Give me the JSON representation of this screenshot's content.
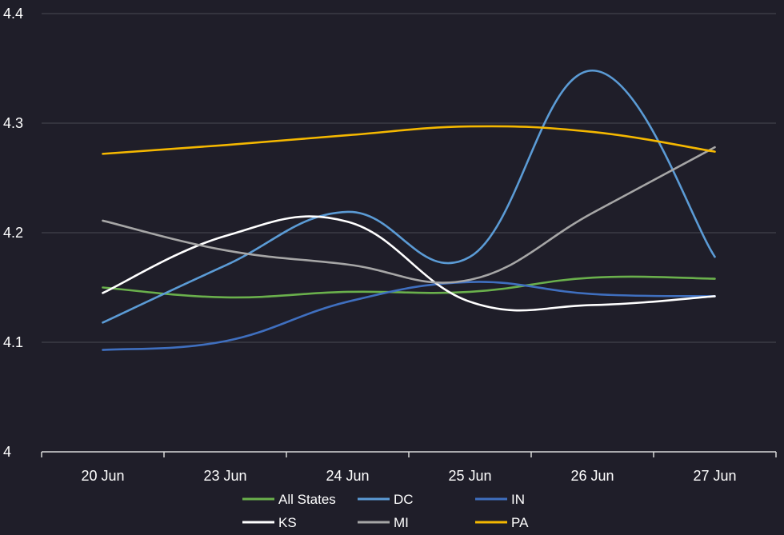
{
  "chart_data": {
    "type": "line",
    "title": "",
    "xlabel": "",
    "ylabel": "",
    "categories": [
      "20 Jun",
      "23 Jun",
      "24 Jun",
      "25 Jun",
      "26 Jun",
      "27 Jun"
    ],
    "ylim": [
      4,
      4.4
    ],
    "yticks": [
      4,
      4.1,
      4.2,
      4.3,
      4.4
    ],
    "ytick_labels": [
      "4",
      "4.1",
      "4.2",
      "4.3",
      "4.4"
    ],
    "grid": true,
    "legend_position": "bottom",
    "series": [
      {
        "name": "All States",
        "color": "#6ab04c",
        "values": [
          4.15,
          4.141,
          4.146,
          4.146,
          4.159,
          4.158
        ]
      },
      {
        "name": "DC",
        "color": "#5b9bd5",
        "values": [
          4.118,
          4.17,
          4.219,
          4.178,
          4.348,
          4.178
        ]
      },
      {
        "name": "IN",
        "color": "#3f6fbf",
        "values": [
          4.093,
          4.101,
          4.137,
          4.155,
          4.144,
          4.142
        ]
      },
      {
        "name": "KS",
        "color": "#ffffff",
        "values": [
          4.145,
          4.197,
          4.21,
          4.137,
          4.134,
          4.142
        ]
      },
      {
        "name": "MI",
        "color": "#a6a6a6",
        "values": [
          4.211,
          4.184,
          4.171,
          4.157,
          4.218,
          4.278
        ]
      },
      {
        "name": "PA",
        "color": "#f5b800",
        "values": [
          4.272,
          4.28,
          4.289,
          4.297,
          4.292,
          4.274
        ]
      }
    ]
  }
}
